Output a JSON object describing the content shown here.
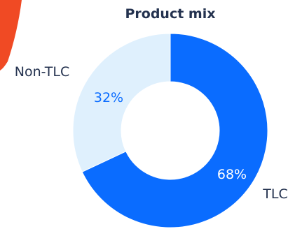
{
  "colors": {
    "accent_shape": "#F04A24",
    "background": "#FFFFFF",
    "title": "#24324F"
  },
  "chart_data": {
    "type": "pie",
    "title": "Product mix",
    "subtitle": "",
    "donut": true,
    "legend": "none",
    "slices": [
      {
        "label": "TLC",
        "value": 68,
        "display": "68%",
        "color": "#0A6CFF",
        "label_color": "#24324F",
        "value_color": "#FFFFFF"
      },
      {
        "label": "Non-TLC",
        "value": 32,
        "display": "32%",
        "color": "#DFF0FD",
        "label_color": "#24324F",
        "value_color": "#0A6CFF"
      }
    ]
  }
}
